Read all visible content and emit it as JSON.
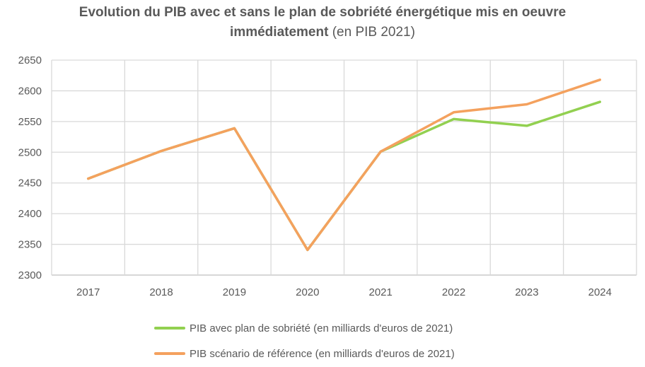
{
  "chart_data": {
    "type": "line",
    "title_bold_line1": "Evolution du PIB avec et sans le plan de sobriété énergétique mis en oeuvre",
    "title_bold_line2": "immédiatement",
    "title_suffix": " (en PIB 2021)",
    "xlabel": "",
    "ylabel": "",
    "x": [
      "2017",
      "2018",
      "2019",
      "2020",
      "2021",
      "2022",
      "2023",
      "2024"
    ],
    "ylim": [
      2300,
      2650
    ],
    "yticks": [
      "2300",
      "2350",
      "2400",
      "2450",
      "2500",
      "2550",
      "2600",
      "2650"
    ],
    "grid": true,
    "legend_position": "bottom",
    "series": [
      {
        "name": "PIB avec plan de sobriété (en milliards d'euros de 2021)",
        "color": "#92D050",
        "values": [
          2457,
          2502,
          2539,
          2341,
          2501,
          2554,
          2543,
          2582
        ]
      },
      {
        "name": "PIB scénario de référence (en milliards d'euros de 2021)",
        "color": "#F4A15E",
        "values": [
          2457,
          2502,
          2539,
          2341,
          2501,
          2565,
          2578,
          2618
        ]
      }
    ]
  }
}
